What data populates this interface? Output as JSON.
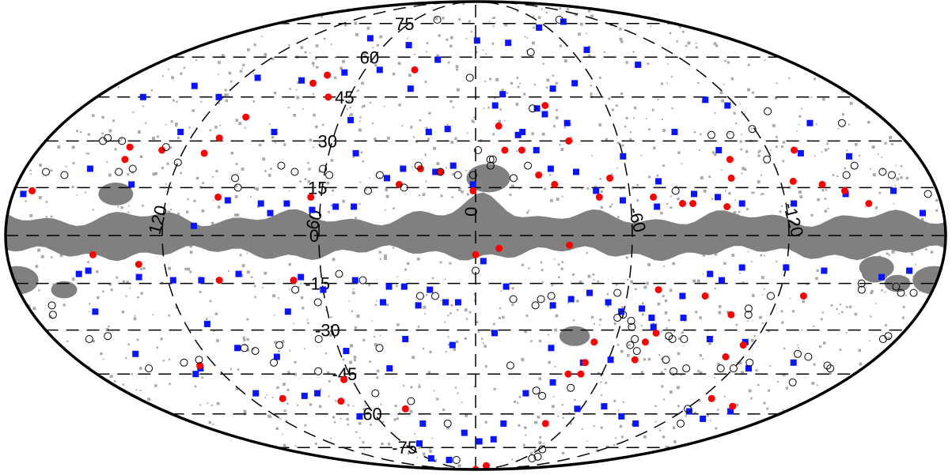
{
  "chart_data": {
    "type": "scatter",
    "projection": "mollweide",
    "title": "",
    "xlabel": "",
    "ylabel": "",
    "xlim": [
      180,
      -180
    ],
    "ylim": [
      -90,
      90
    ],
    "grid": true,
    "legend": "none",
    "lat_tick_labels": [
      "75",
      "60",
      "45",
      "30",
      "15",
      "0",
      "-15",
      "-30",
      "-45",
      "-60",
      "-75"
    ],
    "lat_tick_values": [
      75,
      60,
      45,
      30,
      15,
      0,
      -15,
      -30,
      -45,
      -60,
      -75
    ],
    "lon_tick_labels": [
      "120",
      "60",
      "0",
      "-60",
      "-120"
    ],
    "lon_tick_values": [
      120,
      60,
      0,
      -60,
      -120
    ],
    "mask_color": "#808080",
    "background_dot_color": "#aaaaaa",
    "series": [
      {
        "marker": "square",
        "color": "#0a14ff",
        "points": [
          [
            176,
            13
          ],
          [
            154,
            21
          ],
          [
            135,
            16
          ],
          [
            108,
            3
          ],
          [
            96,
            11
          ],
          [
            83,
            10
          ],
          [
            79,
            7
          ],
          [
            73,
            10
          ],
          [
            63,
            8
          ],
          [
            54,
            9
          ],
          [
            47,
            9
          ],
          [
            35,
            18
          ],
          [
            29,
            21
          ],
          [
            16,
            20
          ],
          [
            9,
            22
          ],
          [
            1,
            16
          ],
          [
            12,
            34
          ],
          [
            20,
            33
          ],
          [
            32,
            48
          ],
          [
            52,
            55
          ],
          [
            70,
            54
          ],
          [
            89,
            51
          ],
          [
            113,
            52
          ],
          [
            140,
            49
          ],
          [
            158,
            45
          ],
          [
            126,
            33
          ],
          [
            122,
            45
          ],
          [
            86,
            33
          ],
          [
            55,
            37
          ],
          [
            49,
            26
          ],
          [
            -9,
            42
          ],
          [
            -13,
            46
          ],
          [
            -20,
            33
          ],
          [
            -28,
            41
          ],
          [
            -38,
            48
          ],
          [
            -50,
            50
          ],
          [
            -70,
            63
          ],
          [
            -91,
            57
          ],
          [
            -108,
            44
          ],
          [
            -146,
            36
          ],
          [
            -133,
            26
          ],
          [
            -152,
            25
          ],
          [
            -163,
            14
          ],
          [
            -172,
            7
          ],
          [
            -144,
            13
          ],
          [
            -123,
            10
          ],
          [
            -103,
            10
          ],
          [
            -94,
            12
          ],
          [
            -85,
            13
          ],
          [
            -70,
            9
          ],
          [
            -57,
            11
          ],
          [
            -47,
            14
          ],
          [
            -40,
            20
          ],
          [
            -30,
            21
          ],
          [
            -25,
            27
          ],
          [
            -18,
            32
          ],
          [
            -31,
            39
          ],
          [
            -40,
            36
          ],
          [
            -60,
            25
          ],
          [
            -72,
            17
          ],
          [
            -85,
            33
          ],
          [
            -100,
            27
          ],
          [
            -116,
            42
          ],
          [
            -1,
            67
          ],
          [
            -22,
            66
          ],
          [
            22,
            59
          ],
          [
            44,
            65
          ],
          [
            75,
            68
          ],
          [
            -53,
            73
          ],
          [
            -83,
            76
          ],
          [
            150,
            -11
          ],
          [
            154,
            -12
          ],
          [
            131,
            -13
          ],
          [
            118,
            -14
          ],
          [
            107,
            -14
          ],
          [
            92,
            -12
          ],
          [
            68,
            -13
          ],
          [
            60,
            -17
          ],
          [
            47,
            -14
          ],
          [
            37,
            -21
          ],
          [
            34,
            -16
          ],
          [
            28,
            -16
          ],
          [
            23,
            -22
          ],
          [
            18,
            -17
          ],
          [
            12,
            -21
          ],
          [
            7,
            -21
          ],
          [
            -3,
            -8
          ],
          [
            -12,
            -16
          ],
          [
            -31,
            -22
          ],
          [
            -38,
            -20
          ],
          [
            -45,
            -18
          ],
          [
            -53,
            -21
          ],
          [
            -59,
            -24
          ],
          [
            -67,
            -23
          ],
          [
            -72,
            -26
          ],
          [
            -82,
            -19
          ],
          [
            -91,
            -12
          ],
          [
            -96,
            -14
          ],
          [
            -103,
            -10
          ],
          [
            -120,
            -10
          ],
          [
            -135,
            -11
          ],
          [
            -158,
            -13
          ],
          [
            -168,
            -11
          ],
          [
            154,
            -24
          ],
          [
            151,
            -38
          ],
          [
            128,
            -43
          ],
          [
            111,
            -28
          ],
          [
            104,
            -36
          ],
          [
            89,
            -39
          ],
          [
            76,
            -24
          ],
          [
            57,
            -37
          ],
          [
            40,
            -43
          ],
          [
            30,
            -33
          ],
          [
            10,
            -35
          ],
          [
            -8,
            -31
          ],
          [
            -33,
            -36
          ],
          [
            -49,
            -41
          ],
          [
            -61,
            -40
          ],
          [
            -74,
            -29
          ],
          [
            -85,
            -26
          ],
          [
            -100,
            -33
          ],
          [
            -116,
            -34
          ],
          [
            -127,
            -43
          ],
          [
            -145,
            -41
          ],
          [
            -148,
            -59
          ],
          [
            -140,
            -62
          ],
          [
            -124,
            -59
          ],
          [
            -103,
            -64
          ],
          [
            -88,
            -61
          ],
          [
            -72,
            -57
          ],
          [
            -58,
            -58
          ],
          [
            -38,
            -48
          ],
          [
            -26,
            -52
          ],
          [
            -14,
            -71
          ],
          [
            -3,
            -72
          ],
          [
            8,
            -68
          ],
          [
            34,
            -64
          ],
          [
            47,
            -73
          ],
          [
            56,
            -81
          ],
          [
            36,
            -82
          ],
          [
            70,
            -61
          ],
          [
            90,
            -53
          ],
          [
            114,
            -52
          ],
          [
            133,
            -45
          ],
          [
            82,
            -52
          ],
          [
            -18,
            -64
          ]
        ]
      },
      {
        "marker": "circle",
        "color": "#ff0000",
        "points": [
          [
            173,
            14
          ],
          [
            142,
            24
          ],
          [
            143,
            28
          ],
          [
            129,
            27
          ],
          [
            111,
            26
          ],
          [
            108,
            31
          ],
          [
            102,
            38
          ],
          [
            82,
            50
          ],
          [
            70,
            45
          ],
          [
            78,
            53
          ],
          [
            33,
            55
          ],
          [
            1,
            14
          ],
          [
            14,
            20
          ],
          [
            22,
            21
          ],
          [
            30,
            16
          ],
          [
            -10,
            35
          ],
          [
            -12,
            27
          ],
          [
            -25,
            19
          ],
          [
            -31,
            16
          ],
          [
            -48,
            12
          ],
          [
            -53,
            18
          ],
          [
            -69,
            12
          ],
          [
            -80,
            10
          ],
          [
            -84,
            10
          ],
          [
            -103,
            24
          ],
          [
            -101,
            18
          ],
          [
            -97,
            9
          ],
          [
            -125,
            17
          ],
          [
            -131,
            27
          ],
          [
            -136,
            16
          ],
          [
            -144,
            14
          ],
          [
            -152,
            10
          ],
          [
            64,
            12
          ],
          [
            100,
            12
          ],
          [
            -39,
            30
          ],
          [
            -19,
            27
          ],
          [
            -32,
            42
          ],
          [
            -36,
            -3
          ],
          [
            0,
            -6
          ],
          [
            -9,
            -4
          ],
          [
            147,
            -6
          ],
          [
            130,
            -9
          ],
          [
            100,
            -14
          ],
          [
            71,
            -14
          ],
          [
            -72,
            -17
          ],
          [
            -91,
            -19
          ],
          [
            -130,
            -19
          ],
          [
            -104,
            -25
          ],
          [
            -76,
            -31
          ],
          [
            -73,
            -34
          ],
          [
            -112,
            -39
          ],
          [
            -116,
            -35
          ],
          [
            -50,
            -41
          ],
          [
            -51,
            -34
          ],
          [
            -44,
            -45
          ],
          [
            -50,
            -45
          ],
          [
            -72,
            -40
          ],
          [
            -126,
            -54
          ],
          [
            -144,
            -57
          ],
          [
            40,
            -58
          ],
          [
            64,
            -47
          ],
          [
            -23,
            -86
          ],
          [
            -45,
            -64
          ],
          [
            127,
            -42
          ],
          [
            103,
            -54
          ],
          [
            -15,
            -93
          ],
          [
            73,
            -55
          ]
        ]
      },
      {
        "marker": "open-circle",
        "color": "#000000",
        "points": [
          [
            171,
            20
          ],
          [
            163,
            19
          ],
          [
            142,
            20
          ],
          [
            137,
            21
          ],
          [
            128,
            28
          ],
          [
            120,
            23
          ],
          [
            95,
            18
          ],
          [
            93,
            15
          ],
          [
            78,
            22
          ],
          [
            72,
            20
          ],
          [
            61,
            21
          ],
          [
            58,
            19
          ],
          [
            42,
            14
          ],
          [
            38,
            19
          ],
          [
            28,
            15
          ],
          [
            23,
            22
          ],
          [
            14,
            20
          ],
          [
            7,
            19
          ],
          [
            1,
            19
          ],
          [
            -1,
            27
          ],
          [
            -6,
            24
          ],
          [
            -7,
            24
          ],
          [
            -6,
            22
          ],
          [
            -21,
            22
          ],
          [
            -15,
            18
          ],
          [
            -78,
            14
          ],
          [
            -119,
            34
          ],
          [
            -162,
            20
          ],
          [
            -165,
            19
          ],
          [
            -132,
            40
          ],
          [
            -160,
            36
          ],
          [
            156,
            30
          ],
          [
            155,
            31
          ],
          [
            148,
            30
          ],
          [
            -26,
            41
          ],
          [
            3,
            52
          ],
          [
            -34,
            62
          ],
          [
            38,
            77
          ],
          [
            -83,
            77
          ],
          [
            -100,
            32
          ],
          [
            -108,
            32
          ],
          [
            -118,
            24
          ],
          [
            -147,
            19
          ],
          [
            -152,
            22
          ],
          [
            -176,
            13
          ],
          [
            170,
            -22
          ],
          [
            172,
            -25
          ],
          [
            165,
            -33
          ],
          [
            156,
            -32
          ],
          [
            152,
            -43
          ],
          [
            133,
            -41
          ],
          [
            125,
            -40
          ],
          [
            101,
            -36
          ],
          [
            97,
            -37
          ],
          [
            92,
            -41
          ],
          [
            71,
            -17
          ],
          [
            63,
            -21
          ],
          [
            53,
            -12
          ],
          [
            44,
            -14
          ],
          [
            22,
            -19
          ],
          [
            16,
            -19
          ],
          [
            -15,
            -20
          ],
          [
            -24,
            -22
          ],
          [
            -26,
            -20
          ],
          [
            -30,
            -19
          ],
          [
            -56,
            -18
          ],
          [
            -60,
            -25
          ],
          [
            -58,
            -26
          ],
          [
            -64,
            -27
          ],
          [
            -65,
            -29
          ],
          [
            -68,
            -33
          ],
          [
            -67,
            -35
          ],
          [
            -82,
            -32
          ],
          [
            -84,
            -33
          ],
          [
            -86,
            -40
          ],
          [
            -93,
            -44
          ],
          [
            -117,
            -19
          ],
          [
            -110,
            -23
          ],
          [
            -111,
            -25
          ],
          [
            -151,
            -15
          ],
          [
            -152,
            -17
          ],
          [
            -165,
            -16
          ],
          [
            -168,
            -18
          ],
          [
            -174,
            -33
          ],
          [
            -175,
            -32
          ],
          [
            -143,
            -38
          ],
          [
            -149,
            -39
          ],
          [
            -162,
            -42
          ],
          [
            -165,
            -43
          ],
          [
            -156,
            -48
          ],
          [
            -173,
            -18
          ],
          [
            -125,
            -41
          ],
          [
            -120,
            -43
          ],
          [
            -114,
            -43
          ],
          [
            -98,
            -43
          ],
          [
            -89,
            -33
          ],
          [
            -48,
            -50
          ],
          [
            -71,
            -37
          ],
          [
            52,
            -52
          ],
          [
            35,
            -55
          ],
          [
            -35,
            -53
          ],
          [
            -31,
            -51
          ],
          [
            -16,
            -42
          ],
          [
            0,
            -11
          ],
          [
            -63,
            -76
          ],
          [
            -71,
            -81
          ],
          [
            -73,
            -80
          ],
          [
            -121,
            -58
          ],
          [
            -132,
            -64
          ],
          [
            18,
            -64
          ],
          [
            26,
            -82
          ],
          [
            67,
            -33
          ],
          [
            85,
            -35
          ],
          [
            74,
            -44
          ],
          [
            42,
            -36
          ]
        ]
      }
    ]
  }
}
